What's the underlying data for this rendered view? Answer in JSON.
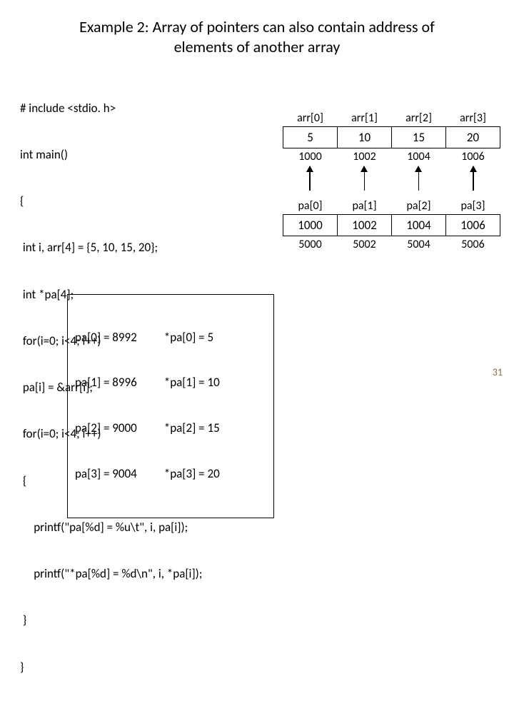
{
  "title_l1": "Example 2: Array of pointers can also contain address of",
  "title_l2": "elements of another array",
  "code": {
    "l1": "# include <stdio. h>",
    "l2": "int main()",
    "l3": "{",
    "l4": " int i, arr[4] = {5, 10, 15, 20};",
    "l5": " int *pa[4];",
    "l6": " for(i=0; i<4; i++)",
    "l7": " pa[i] = &arr[i];",
    "l8": " for(i=0; i<4; i++)",
    "l9": " {",
    "l10": "     printf(\"pa[%d] = %u\\t\", i, pa[i]);",
    "l11": "     printf(\"*pa[%d] = %d\\n\", i, *pa[i]);",
    "l12": " }",
    "l13": "}"
  },
  "output_left": {
    "r1": "pa[0] = 8992",
    "r2": "pa[1] = 8996",
    "r3": "pa[2] = 9000",
    "r4": "pa[3] = 9004"
  },
  "output_right": {
    "r1": "*pa[0] = 5",
    "r2": "*pa[1] = 10",
    "r3": "*pa[2] = 15",
    "r4": "*pa[3] = 20"
  },
  "arr": {
    "h0": "arr[0]",
    "h1": "arr[1]",
    "h2": "arr[2]",
    "h3": "arr[3]",
    "v0": "5",
    "v1": "10",
    "v2": "15",
    "v3": "20",
    "a0": "1000",
    "a1": "1002",
    "a2": "1004",
    "a3": "1006"
  },
  "pa": {
    "h0": "pa[0]",
    "h1": "pa[1]",
    "h2": "pa[2]",
    "h3": "pa[3]",
    "v0": "1000",
    "v1": "1002",
    "v2": "1004",
    "v3": "1006",
    "a0": "5000",
    "a1": "5002",
    "a2": "5004",
    "a3": "5006"
  },
  "pagenum": "31"
}
